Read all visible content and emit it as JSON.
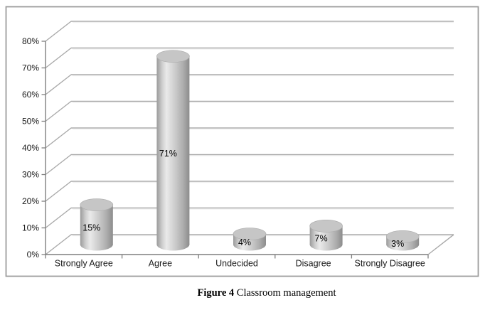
{
  "figure": {
    "caption_prefix": "Figure 4",
    "caption_text": "Classroom management"
  },
  "chart_data": {
    "type": "bar",
    "subtype": "3d-cylinder",
    "title": "",
    "xlabel": "",
    "ylabel": "",
    "categories": [
      "Strongly Agree",
      "Agree",
      "Undecided",
      "Disagree",
      "Strongly Disagree"
    ],
    "values": [
      15,
      71,
      4,
      7,
      3
    ],
    "data_labels": [
      "15%",
      "71%",
      "4%",
      "7%",
      "3%"
    ],
    "ylim": [
      0,
      80
    ],
    "ytick_interval": 10,
    "ytick_labels": [
      "0%",
      "10%",
      "20%",
      "30%",
      "40%",
      "50%",
      "60%",
      "70%",
      "80%"
    ],
    "grid": true,
    "legend": false,
    "colors": {
      "cyl_edge_left": "#9a9a9a",
      "cyl_highlight": "#eaeaea",
      "cyl_mid": "#cdcdcd",
      "cyl_edge_right": "#8c8c8c",
      "cyl_top": "#c6c6c6",
      "cyl_top_stroke": "#aeaeae",
      "gridline": "#a9a9a9",
      "gridline_highlight": "#f0f0f0",
      "axis": "#7f7f7f",
      "frame": "#9c9c9c",
      "text": "#1a1a1a"
    }
  }
}
